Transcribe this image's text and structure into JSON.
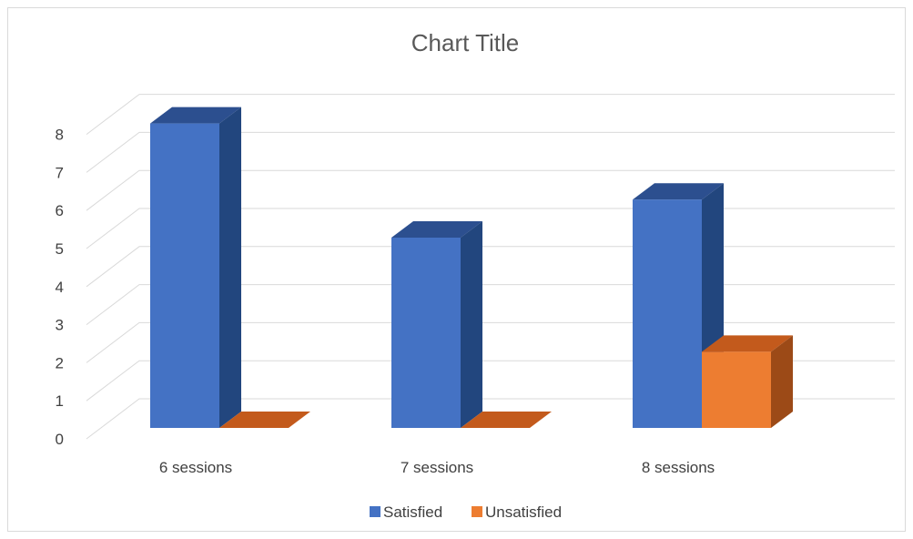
{
  "chart_data": {
    "type": "bar",
    "title": "Chart Title",
    "categories": [
      "6 sessions",
      "7 sessions",
      "8 sessions"
    ],
    "series": [
      {
        "name": "Satisfied",
        "values": [
          8,
          5,
          6
        ],
        "color": "#4472C4",
        "side_color": "#22467E",
        "top_color": "#2C4F8F"
      },
      {
        "name": "Unsatisfied",
        "values": [
          0,
          0,
          2
        ],
        "color": "#ED7D31",
        "side_color": "#9C4A17",
        "top_color": "#C35A1C"
      }
    ],
    "ylim": [
      0,
      8
    ],
    "yticks": [
      "0",
      "1",
      "2",
      "3",
      "4",
      "5",
      "6",
      "7",
      "8"
    ],
    "grid": true,
    "legend_position": "bottom",
    "three_d": true
  }
}
